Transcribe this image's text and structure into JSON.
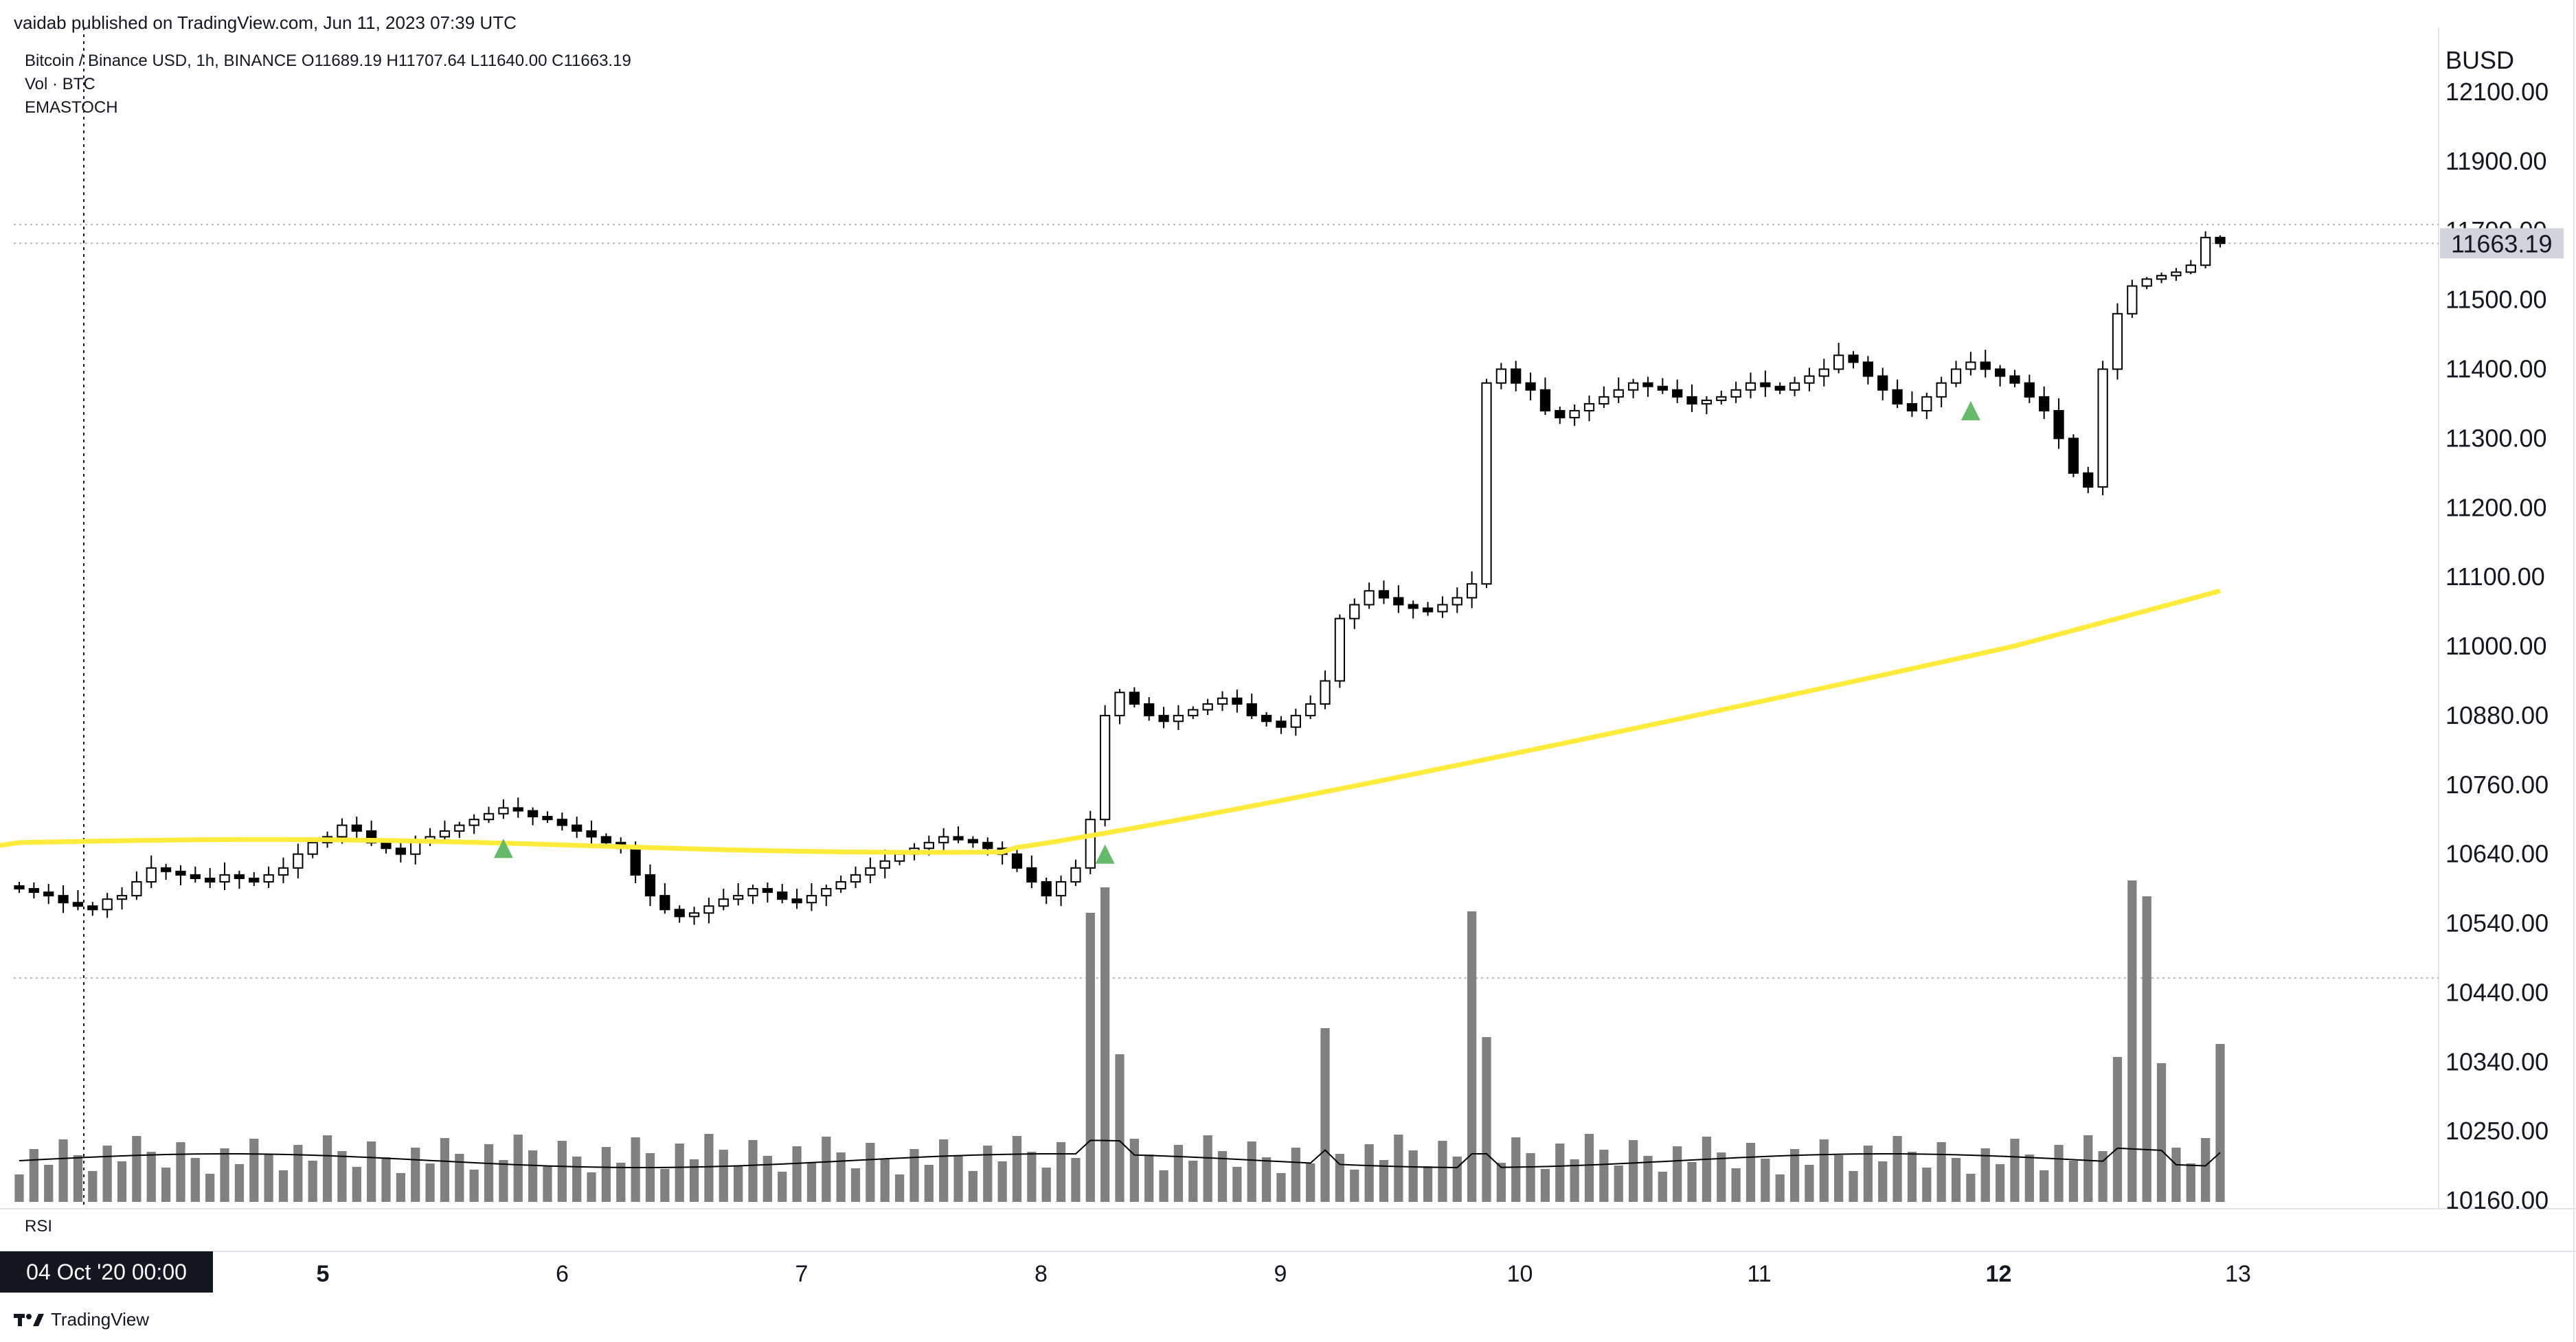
{
  "header": {
    "published_by": "vaidab published on TradingView.com, Jun 11, 2023 07:39 UTC"
  },
  "legend": {
    "symbol_line": "Bitcoin / Binance USD, 1h, BINANCE  O11689.19  H11707.64  L11640.00  C11663.19",
    "volume_line": "Vol · BTC",
    "indicator_line": "EMASTOCH"
  },
  "rsi_label": "RSI",
  "crosshair_date": "04 Oct '20   00:00",
  "footer": {
    "brand": "TradingView"
  },
  "colors": {
    "up_candle": "#ffffff",
    "down_candle": "#000000",
    "ema": "#ffeb3b",
    "volume": "#808080",
    "signal": "#66bb6a",
    "grid_dotted": "#b2b5be"
  },
  "chart_data": {
    "type": "candlestick",
    "title": "Bitcoin / Binance USD, 1h, BINANCE",
    "currency_label": "BUSD",
    "current_price": "11663.19",
    "ohlc": {
      "open": 11689.19,
      "high": 11707.64,
      "low": 11640.0,
      "close": 11663.19
    },
    "y_ticks": [
      "12100.00",
      "11900.00",
      "11700.00",
      "11500.00",
      "11400.00",
      "11300.00",
      "11200.00",
      "11100.00",
      "11000.00",
      "10880.00",
      "10760.00",
      "10640.00",
      "10540.00",
      "10440.00",
      "10340.00",
      "10250.00",
      "10160.00"
    ],
    "x_ticks": [
      {
        "label": "5",
        "bold": true
      },
      {
        "label": "6",
        "bold": false
      },
      {
        "label": "7",
        "bold": false
      },
      {
        "label": "8",
        "bold": false
      },
      {
        "label": "9",
        "bold": false
      },
      {
        "label": "10",
        "bold": false
      },
      {
        "label": "11",
        "bold": false
      },
      {
        "label": "12",
        "bold": true
      },
      {
        "label": "13",
        "bold": false
      }
    ],
    "ylim": [
      10160,
      12100
    ],
    "candles_hourly_close": [
      10590,
      10585,
      10580,
      10570,
      10565,
      10560,
      10575,
      10580,
      10600,
      10620,
      10615,
      10610,
      10605,
      10600,
      10610,
      10605,
      10600,
      10610,
      10620,
      10640,
      10660,
      10670,
      10690,
      10680,
      10660,
      10650,
      10640,
      10660,
      10670,
      10680,
      10690,
      10700,
      10710,
      10720,
      10715,
      10705,
      10700,
      10690,
      10680,
      10670,
      10660,
      10650,
      10610,
      10580,
      10560,
      10550,
      10555,
      10565,
      10575,
      10580,
      10590,
      10585,
      10575,
      10570,
      10580,
      10590,
      10600,
      10610,
      10620,
      10630,
      10640,
      10650,
      10660,
      10670,
      10665,
      10660,
      10650,
      10640,
      10620,
      10600,
      10580,
      10600,
      10620,
      10700,
      10880,
      10920,
      10900,
      10880,
      10870,
      10880,
      10890,
      10900,
      10910,
      10900,
      10880,
      10870,
      10860,
      10880,
      10900,
      10940,
      11040,
      11060,
      11080,
      11070,
      11060,
      11055,
      11050,
      11060,
      11070,
      11090,
      11380,
      11400,
      11380,
      11370,
      11340,
      11330,
      11340,
      11350,
      11360,
      11370,
      11380,
      11375,
      11370,
      11360,
      11350,
      11355,
      11360,
      11370,
      11380,
      11375,
      11370,
      11380,
      11390,
      11400,
      11420,
      11410,
      11390,
      11370,
      11350,
      11340,
      11360,
      11380,
      11400,
      11410,
      11400,
      11390,
      11380,
      11360,
      11340,
      11300,
      11250,
      11230,
      11400,
      11480,
      11540,
      11560,
      11570,
      11580,
      11600,
      11680,
      11663.19
    ],
    "ema_series": "EMA overlay rising from ~10660 to ~11080",
    "signals": [
      "buy-signal at day 6",
      "buy-signal at day 9",
      "buy-signal at day 11"
    ],
    "volume_sma": true
  }
}
